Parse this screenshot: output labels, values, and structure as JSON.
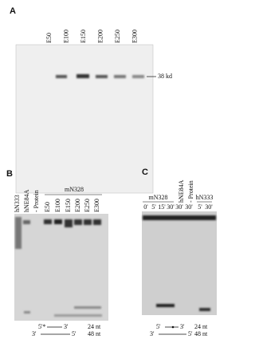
{
  "panels": {
    "a": {
      "label": "A",
      "lanes": [
        "E50",
        "E100",
        "E150",
        "E200",
        "E250",
        "E300"
      ],
      "marker": "38 kd"
    },
    "b": {
      "label": "B",
      "lanes": [
        "hN333",
        "hNE84A",
        "- Protein",
        "E50",
        "E100",
        "E150",
        "E200",
        "E250",
        "E300"
      ],
      "group": "mN328",
      "duplexes": [
        {
          "left": "5'*",
          "right": "3'",
          "size": "24 nt"
        },
        {
          "left": "3'",
          "right": "5'",
          "size": "48 nt"
        }
      ]
    },
    "c": {
      "label": "C",
      "groups": [
        {
          "name": "mN328",
          "lanes": [
            "0'",
            "5'",
            "15'",
            "30'"
          ]
        },
        {
          "name": "hNE84A",
          "lanes": [
            "30'"
          ]
        },
        {
          "name": "- Protein",
          "lanes": [
            "30'"
          ]
        },
        {
          "name": "hN333",
          "lanes": [
            "5'",
            "30'"
          ]
        }
      ],
      "duplexes": [
        {
          "left": "5'",
          "right": "3'",
          "size": "24 nt"
        },
        {
          "left": "3'",
          "right": "5'",
          "size": "48 nt"
        }
      ]
    }
  }
}
